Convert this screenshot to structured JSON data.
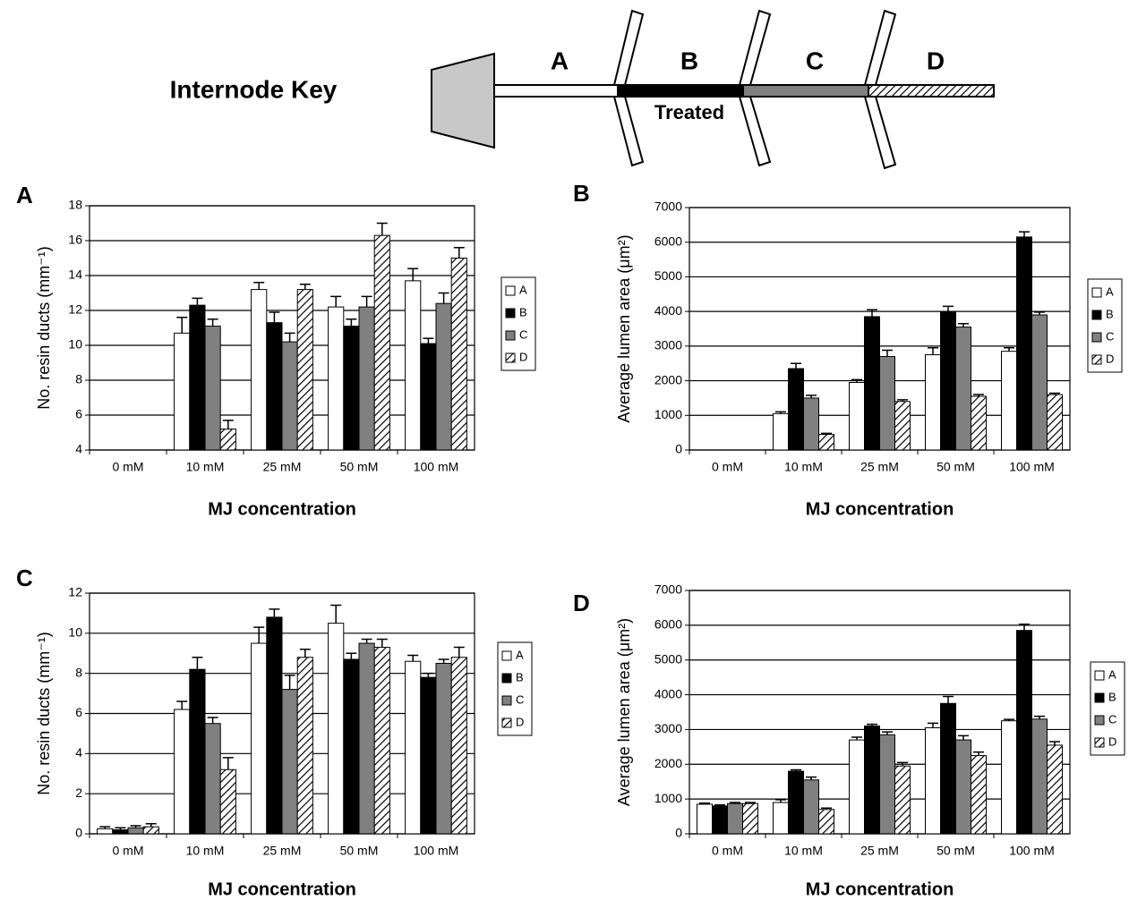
{
  "key": {
    "title": "Internode Key",
    "segments": [
      "A",
      "B",
      "C",
      "D"
    ],
    "treated": "Treated"
  },
  "chart_data": [
    {
      "type": "bar",
      "panel": "A",
      "ylabel": "No. resin ducts (mm⁻¹)",
      "xlabel": "MJ concentration",
      "categories": [
        "0 mM",
        "10 mM",
        "25 mM",
        "50 mM",
        "100 mM"
      ],
      "ylim": [
        4,
        18
      ],
      "yticks": [
        4,
        6,
        8,
        10,
        12,
        14,
        16,
        18
      ],
      "grid": true,
      "series": [
        {
          "name": "A",
          "color": "#ffffff",
          "values": [
            null,
            10.7,
            13.2,
            12.2,
            13.7
          ],
          "errors": [
            null,
            0.9,
            0.4,
            0.6,
            0.7
          ]
        },
        {
          "name": "B",
          "color": "#000000",
          "values": [
            null,
            12.3,
            11.3,
            11.1,
            10.1
          ],
          "errors": [
            null,
            0.4,
            0.6,
            0.4,
            0.3
          ]
        },
        {
          "name": "C",
          "color": "#808080",
          "values": [
            null,
            11.1,
            10.2,
            12.2,
            12.4
          ],
          "errors": [
            null,
            0.4,
            0.5,
            0.6,
            0.6
          ]
        },
        {
          "name": "D",
          "color": "#ffffff",
          "hatch": true,
          "values": [
            null,
            5.2,
            13.2,
            16.3,
            15.0
          ],
          "errors": [
            null,
            0.5,
            0.3,
            0.7,
            0.6
          ]
        }
      ]
    },
    {
      "type": "bar",
      "panel": "B",
      "ylabel": "Average lumen area (μm²)",
      "xlabel": "MJ concentration",
      "categories": [
        "0 mM",
        "10 mM",
        "25 mM",
        "50 mM",
        "100 mM"
      ],
      "ylim": [
        0,
        7000
      ],
      "yticks": [
        0,
        1000,
        2000,
        3000,
        4000,
        5000,
        6000,
        7000
      ],
      "grid": true,
      "series": [
        {
          "name": "A",
          "color": "#ffffff",
          "values": [
            null,
            1050,
            1950,
            2750,
            2850
          ],
          "errors": [
            null,
            50,
            80,
            200,
            100
          ]
        },
        {
          "name": "B",
          "color": "#000000",
          "values": [
            null,
            2350,
            3850,
            4000,
            6150
          ],
          "errors": [
            null,
            150,
            200,
            150,
            150
          ]
        },
        {
          "name": "C",
          "color": "#808080",
          "values": [
            null,
            1500,
            2700,
            3550,
            3900
          ],
          "errors": [
            null,
            80,
            180,
            100,
            80
          ]
        },
        {
          "name": "D",
          "color": "#ffffff",
          "hatch": true,
          "values": [
            null,
            450,
            1400,
            1550,
            1600
          ],
          "errors": [
            null,
            30,
            50,
            50,
            40
          ]
        }
      ]
    },
    {
      "type": "bar",
      "panel": "C",
      "ylabel": "No. resin ducts (mm⁻¹)",
      "xlabel": "MJ concentration",
      "categories": [
        "0 mM",
        "10 mM",
        "25 mM",
        "50 mM",
        "100 mM"
      ],
      "ylim": [
        0,
        12
      ],
      "yticks": [
        0,
        2,
        4,
        6,
        8,
        10,
        12
      ],
      "grid": true,
      "series": [
        {
          "name": "A",
          "color": "#ffffff",
          "values": [
            0.25,
            6.2,
            9.5,
            10.5,
            8.6
          ],
          "errors": [
            0.1,
            0.4,
            0.8,
            0.9,
            0.3
          ]
        },
        {
          "name": "B",
          "color": "#000000",
          "values": [
            0.2,
            8.2,
            10.8,
            8.7,
            7.8
          ],
          "errors": [
            0.1,
            0.6,
            0.4,
            0.3,
            0.2
          ]
        },
        {
          "name": "C",
          "color": "#808080",
          "values": [
            0.3,
            5.5,
            7.2,
            9.5,
            8.5
          ],
          "errors": [
            0.1,
            0.3,
            0.7,
            0.2,
            0.2
          ]
        },
        {
          "name": "D",
          "color": "#ffffff",
          "hatch": true,
          "values": [
            0.35,
            3.2,
            8.8,
            9.3,
            8.8
          ],
          "errors": [
            0.15,
            0.6,
            0.4,
            0.4,
            0.5
          ]
        }
      ]
    },
    {
      "type": "bar",
      "panel": "D",
      "ylabel": "Average lumen area (μm²)",
      "xlabel": "MJ concentration",
      "categories": [
        "0 mM",
        "10 mM",
        "25 mM",
        "50 mM",
        "100 mM"
      ],
      "ylim": [
        0,
        7000
      ],
      "yticks": [
        0,
        1000,
        2000,
        3000,
        4000,
        5000,
        6000,
        7000
      ],
      "grid": true,
      "series": [
        {
          "name": "A",
          "color": "#ffffff",
          "values": [
            850,
            900,
            2700,
            3050,
            3250
          ],
          "errors": [
            30,
            80,
            80,
            130,
            40
          ]
        },
        {
          "name": "B",
          "color": "#000000",
          "values": [
            800,
            1800,
            3100,
            3750,
            5850
          ],
          "errors": [
            30,
            40,
            50,
            200,
            180
          ]
        },
        {
          "name": "C",
          "color": "#808080",
          "values": [
            870,
            1550,
            2850,
            2700,
            3300
          ],
          "errors": [
            30,
            80,
            80,
            120,
            80
          ]
        },
        {
          "name": "D",
          "color": "#ffffff",
          "hatch": true,
          "values": [
            870,
            700,
            1950,
            2250,
            2550
          ],
          "errors": [
            30,
            40,
            100,
            100,
            100
          ]
        }
      ]
    }
  ]
}
